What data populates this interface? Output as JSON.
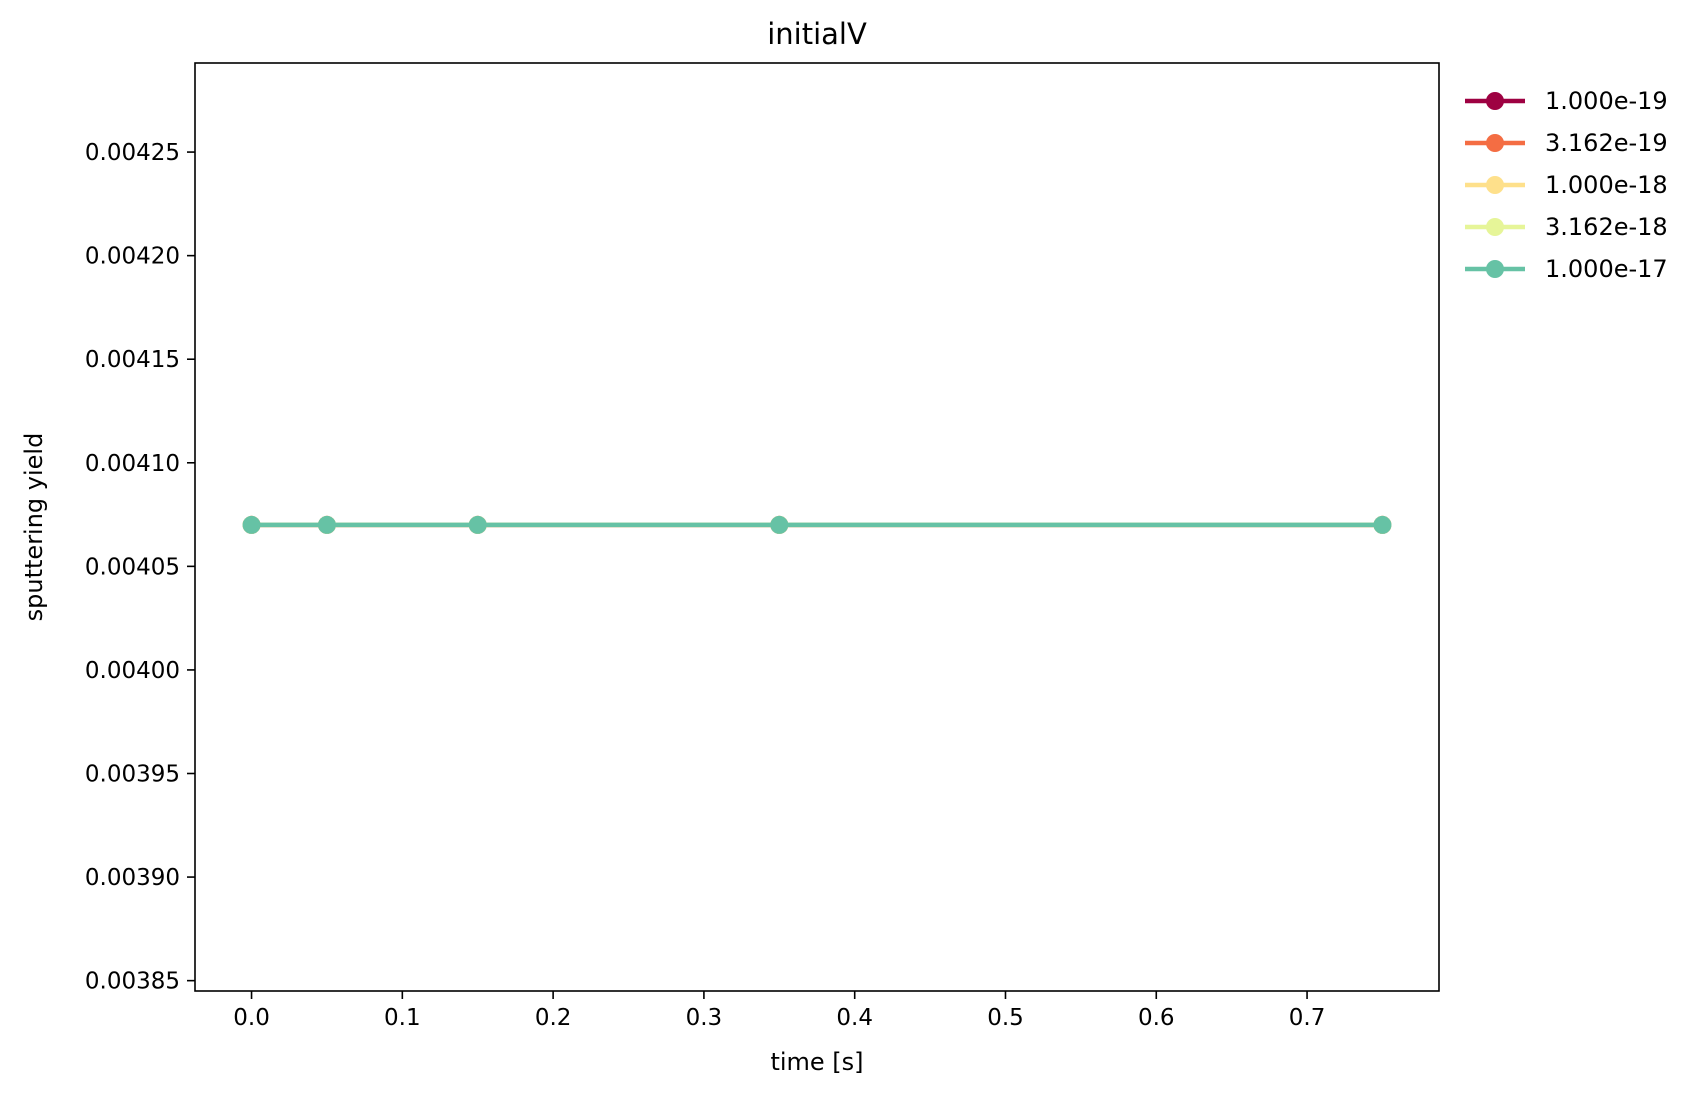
{
  "chart_data": {
    "type": "line",
    "title": "initialV",
    "xlabel": "time [s]",
    "ylabel": "sputtering yield",
    "xlim": [
      -0.0375,
      0.7875
    ],
    "ylim": [
      0.003845,
      0.004293
    ],
    "xticks": [
      0.0,
      0.1,
      0.2,
      0.3,
      0.4,
      0.5,
      0.6,
      0.7
    ],
    "xtick_labels": [
      "0.0",
      "0.1",
      "0.2",
      "0.3",
      "0.4",
      "0.5",
      "0.6",
      "0.7"
    ],
    "yticks": [
      0.00385,
      0.0039,
      0.00395,
      0.004,
      0.00405,
      0.0041,
      0.00415,
      0.0042,
      0.00425
    ],
    "ytick_labels": [
      "0.00385",
      "0.00390",
      "0.00395",
      "0.00400",
      "0.00405",
      "0.00410",
      "0.00415",
      "0.00420",
      "0.00425"
    ],
    "grid": false,
    "legend_placement": "outside-top-right",
    "x": [
      0.0,
      0.05,
      0.15,
      0.35,
      0.75
    ],
    "series": [
      {
        "name": "1.000e-19",
        "color": "#9e0142",
        "values": [
          0.00407,
          0.00407,
          0.00407,
          0.00407,
          0.00407
        ]
      },
      {
        "name": "3.162e-19",
        "color": "#f46d43",
        "values": [
          0.00407,
          0.00407,
          0.00407,
          0.00407,
          0.00407
        ]
      },
      {
        "name": "1.000e-18",
        "color": "#fee08b",
        "values": [
          0.00407,
          0.00407,
          0.00407,
          0.00407,
          0.00407
        ]
      },
      {
        "name": "3.162e-18",
        "color": "#e6f598",
        "values": [
          0.00407,
          0.00407,
          0.00407,
          0.00407,
          0.00407
        ]
      },
      {
        "name": "1.000e-17",
        "color": "#66c2a5",
        "values": [
          0.00407,
          0.00407,
          0.00407,
          0.00407,
          0.00407
        ]
      }
    ]
  }
}
